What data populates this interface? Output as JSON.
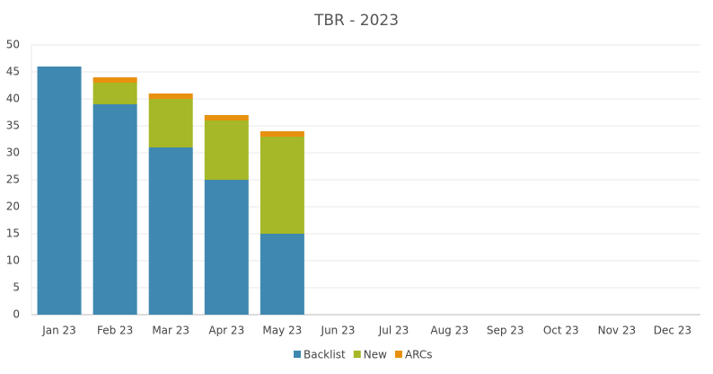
{
  "chart_data": {
    "type": "stacked-bar",
    "title": "TBR - 2023",
    "categories": [
      "Jan 23",
      "Feb 23",
      "Mar 23",
      "Apr 23",
      "May 23",
      "Jun 23",
      "Jul 23",
      "Aug 23",
      "Sep 23",
      "Oct 23",
      "Nov 23",
      "Dec 23"
    ],
    "series": [
      {
        "name": "Backlist",
        "color": "#3f88b1",
        "values": [
          46,
          39,
          31,
          25,
          15,
          null,
          null,
          null,
          null,
          null,
          null,
          null
        ]
      },
      {
        "name": "New",
        "color": "#a6b727",
        "values": [
          0,
          4,
          9,
          11,
          18,
          null,
          null,
          null,
          null,
          null,
          null,
          null
        ]
      },
      {
        "name": "ARCs",
        "color": "#e8900f",
        "values": [
          0,
          1,
          1,
          1,
          1,
          null,
          null,
          null,
          null,
          null,
          null,
          null
        ]
      }
    ],
    "ylim": [
      0,
      50
    ],
    "yticks": [
      0,
      5,
      10,
      15,
      20,
      25,
      30,
      35,
      40,
      45,
      50
    ],
    "grid": true,
    "legend": "bottom"
  }
}
